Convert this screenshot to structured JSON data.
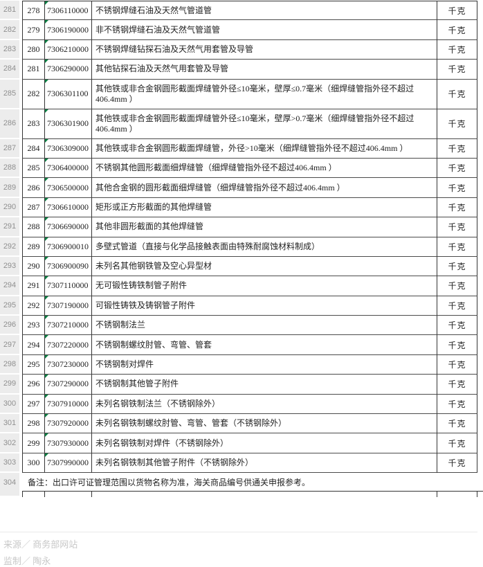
{
  "colors": {
    "border": "#333333",
    "row_header_bg": "#ececec",
    "row_header_text": "#8f8f8f",
    "cell_text": "#1f1f1f",
    "error_triangle_green": "#0a8043",
    "credits_text": "#c8c8c8",
    "divider": "#e9e9e9"
  },
  "table": {
    "unit_label": "千克",
    "rows": [
      {
        "excel_row": "281",
        "seq": "278",
        "code": "7306110000",
        "desc": "不锈钢焊缝石油及天然气管道管",
        "unit": "千克"
      },
      {
        "excel_row": "282",
        "seq": "279",
        "code": "7306190000",
        "desc": "非不锈钢焊缝石油及天然气管道管",
        "unit": "千克"
      },
      {
        "excel_row": "283",
        "seq": "280",
        "code": "7306210000",
        "desc": "不锈钢焊缝钻探石油及天然气用套管及导管",
        "unit": "千克"
      },
      {
        "excel_row": "284",
        "seq": "281",
        "code": "7306290000",
        "desc": "其他钻探石油及天然气用套管及导管",
        "unit": "千克"
      },
      {
        "excel_row": "285",
        "seq": "282",
        "code": "7306301100",
        "desc": "其他铁或非合金钢圆形截面焊缝管外径≤10毫米，壁厚≤0.7毫米（细焊缝管指外径不超过406.4mm ）",
        "tall": true,
        "unit": "千克"
      },
      {
        "excel_row": "286",
        "seq": "283",
        "code": "7306301900",
        "desc": "其他铁或非合金钢圆形截面焊缝管外径≤10毫米，壁厚>0.7毫米（细焊缝管指外径不超过406.4mm ）",
        "tall": true,
        "unit": "千克"
      },
      {
        "excel_row": "287",
        "seq": "284",
        "code": "7306309000",
        "desc": "其他铁或非合金钢圆形截面焊缝管，外径>10毫米（细焊缝管指外径不超过406.4mm ）",
        "unit": "千克"
      },
      {
        "excel_row": "288",
        "seq": "285",
        "code": "7306400000",
        "desc": "不锈钢其他圆形截面细焊缝管（细焊缝管指外径不超过406.4mm ）",
        "unit": "千克"
      },
      {
        "excel_row": "289",
        "seq": "286",
        "code": "7306500000",
        "desc": "其他合金钢的圆形截面细焊缝管（细焊缝管指外径不超过406.4mm ）",
        "unit": "千克"
      },
      {
        "excel_row": "290",
        "seq": "287",
        "code": "7306610000",
        "desc": "矩形或正方形截面的其他焊缝管",
        "unit": "千克"
      },
      {
        "excel_row": "291",
        "seq": "288",
        "code": "7306690000",
        "desc": "其他非圆形截面的其他焊缝管",
        "unit": "千克"
      },
      {
        "excel_row": "292",
        "seq": "289",
        "code": "7306900010",
        "desc": "多壁式管道（直接与化学品接触表面由特殊耐腐蚀材料制成）",
        "unit": "千克"
      },
      {
        "excel_row": "293",
        "seq": "290",
        "code": "7306900090",
        "desc": "未列名其他钢铁管及空心异型材",
        "unit": "千克"
      },
      {
        "excel_row": "294",
        "seq": "291",
        "code": "7307110000",
        "desc": "无可锻性铸铁制管子附件",
        "unit": "千克"
      },
      {
        "excel_row": "295",
        "seq": "292",
        "code": "7307190000",
        "desc": "可锻性铸铁及铸钢管子附件",
        "unit": "千克"
      },
      {
        "excel_row": "296",
        "seq": "293",
        "code": "7307210000",
        "desc": "不锈钢制法兰",
        "unit": "千克"
      },
      {
        "excel_row": "297",
        "seq": "294",
        "code": "7307220000",
        "desc": "不锈钢制螺纹肘管、弯管、管套",
        "unit": "千克"
      },
      {
        "excel_row": "298",
        "seq": "295",
        "code": "7307230000",
        "desc": "不锈钢制对焊件",
        "unit": "千克"
      },
      {
        "excel_row": "299",
        "seq": "296",
        "code": "7307290000",
        "desc": "不锈钢制其他管子附件",
        "unit": "千克"
      },
      {
        "excel_row": "300",
        "seq": "297",
        "code": "7307910000",
        "desc": "未列名钢铁制法兰（不锈钢除外）",
        "unit": "千克"
      },
      {
        "excel_row": "301",
        "seq": "298",
        "code": "7307920000",
        "desc": "未列名钢铁制螺纹肘管、弯管、管套（不锈钢除外）",
        "unit": "千克"
      },
      {
        "excel_row": "302",
        "seq": "299",
        "code": "7307930000",
        "desc": "未列名钢铁制对焊件（不锈钢除外）",
        "unit": "千克"
      },
      {
        "excel_row": "303",
        "seq": "300",
        "code": "7307990000",
        "desc": "未列名钢铁制其他管子附件（不锈钢除外）",
        "unit": "千克"
      }
    ],
    "note_row": {
      "excel_row": "304",
      "text": "备注：出口许可证管理范围以货物名称为准，海关商品编号供通关申报参考。"
    }
  },
  "footer": {
    "source": "来源／ 商务部网站",
    "producer": "监制／ 陶永"
  }
}
